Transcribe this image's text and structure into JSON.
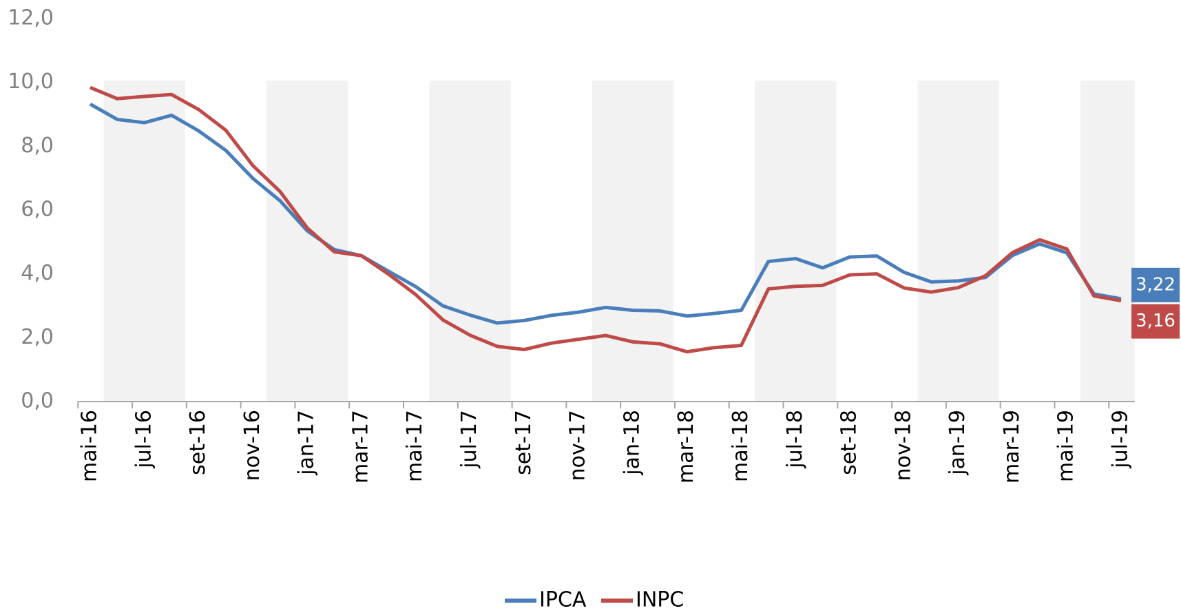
{
  "chart_data": {
    "type": "line",
    "categories": [
      "mai-16",
      null,
      "jul-16",
      null,
      "set-16",
      null,
      "nov-16",
      null,
      "jan-17",
      null,
      "mar-17",
      null,
      "mai-17",
      null,
      "jul-17",
      null,
      "set-17",
      null,
      "nov-17",
      null,
      "jan-18",
      null,
      "mar-18",
      null,
      "mai-18",
      null,
      "jul-18",
      null,
      "set-18",
      null,
      "nov-18",
      null,
      "jan-19",
      null,
      "mar-19",
      null,
      "mai-19",
      null,
      "jul-19"
    ],
    "series": [
      {
        "name": "IPCA",
        "color": "#4a7ebb",
        "values": [
          9.32,
          8.84,
          8.74,
          8.97,
          8.48,
          7.87,
          6.99,
          6.29,
          5.35,
          4.76,
          4.57,
          4.08,
          3.6,
          3.0,
          2.71,
          2.46,
          2.54,
          2.7,
          2.8,
          2.95,
          2.86,
          2.84,
          2.68,
          2.76,
          2.86,
          4.39,
          4.48,
          4.19,
          4.53,
          4.56,
          4.05,
          3.75,
          3.78,
          3.89,
          4.58,
          4.94,
          4.66,
          3.37,
          3.22
        ],
        "value_labels": [
          null,
          null,
          null,
          null,
          null,
          null,
          null,
          null,
          null,
          null,
          null,
          null,
          null,
          null,
          null,
          null,
          null,
          null,
          null,
          null,
          null,
          null,
          null,
          null,
          null,
          null,
          null,
          null,
          null,
          null,
          null,
          null,
          null,
          null,
          null,
          null,
          null,
          null,
          "3,22"
        ]
      },
      {
        "name": "INPC",
        "color": "#be4b48",
        "values": [
          9.84,
          9.49,
          9.56,
          9.62,
          9.15,
          8.5,
          7.39,
          6.58,
          5.44,
          4.69,
          4.57,
          3.99,
          3.35,
          2.56,
          2.08,
          1.73,
          1.63,
          1.83,
          1.95,
          2.07,
          1.87,
          1.81,
          1.56,
          1.69,
          1.76,
          3.53,
          3.61,
          3.64,
          3.97,
          4.0,
          3.56,
          3.43,
          3.57,
          3.94,
          4.67,
          5.07,
          4.78,
          3.31,
          3.16
        ],
        "value_labels": [
          null,
          null,
          null,
          null,
          null,
          null,
          null,
          null,
          null,
          null,
          null,
          null,
          null,
          null,
          null,
          null,
          null,
          null,
          null,
          null,
          null,
          null,
          null,
          null,
          null,
          null,
          null,
          null,
          null,
          null,
          null,
          null,
          null,
          null,
          null,
          null,
          null,
          null,
          "3,16"
        ]
      }
    ],
    "ylim": [
      0,
      12
    ],
    "yticks": [
      {
        "value": 0,
        "label": "0,0"
      },
      {
        "value": 2,
        "label": "2,0"
      },
      {
        "value": 4,
        "label": "4,0"
      },
      {
        "value": 6,
        "label": "6,0"
      },
      {
        "value": 8,
        "label": "8,0"
      },
      {
        "value": 10,
        "label": "10,0"
      },
      {
        "value": 12,
        "label": "12,0"
      }
    ],
    "legend": "bottom"
  }
}
